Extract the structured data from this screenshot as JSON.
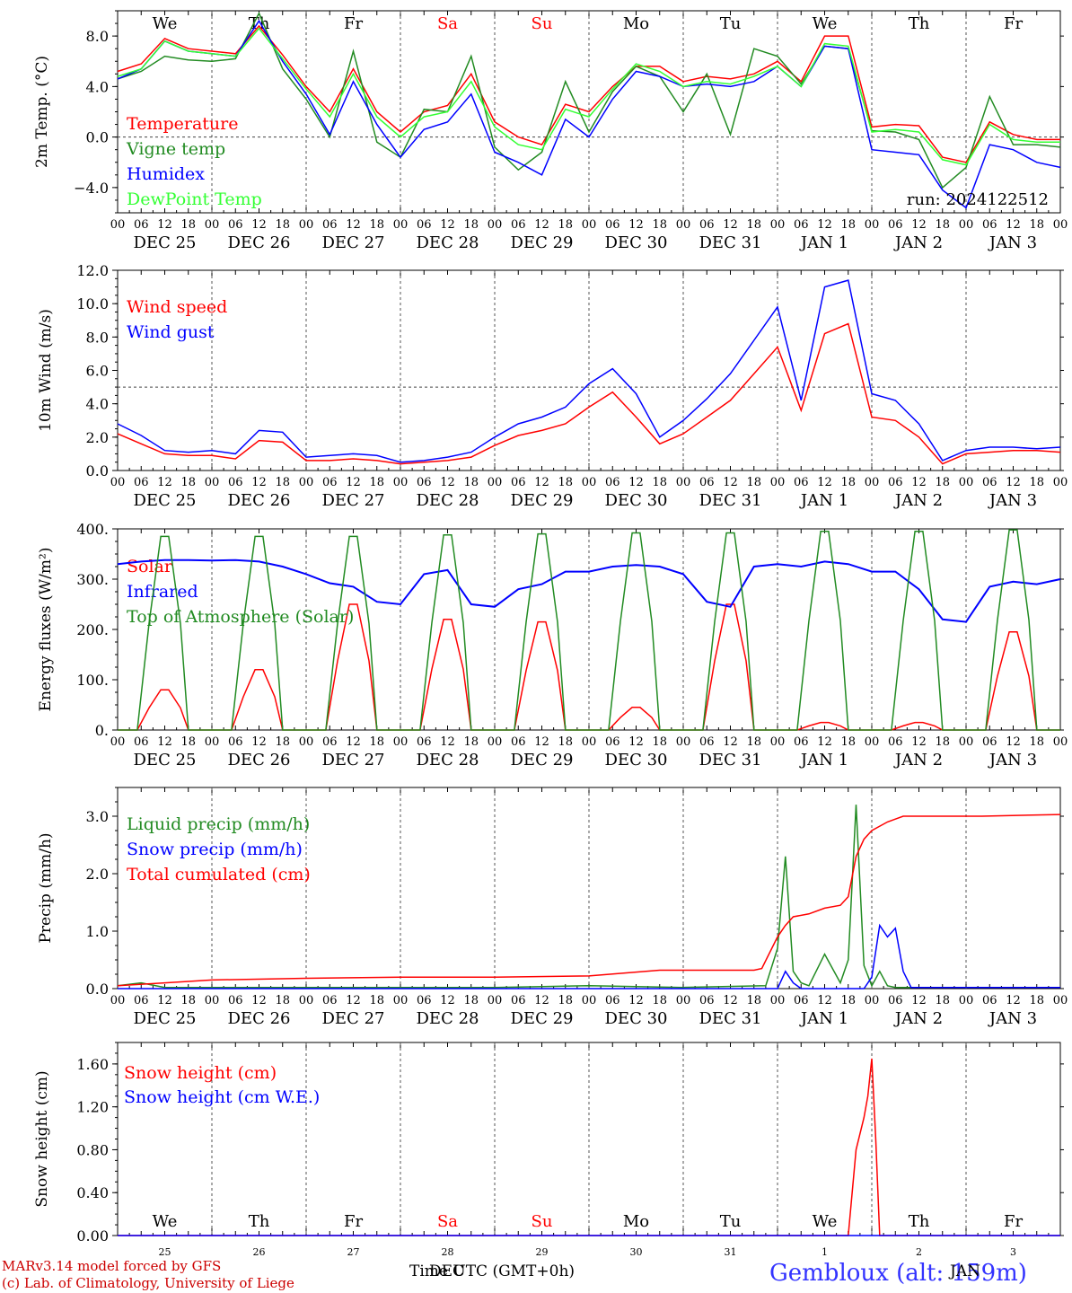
{
  "chart_data": [
    {
      "type": "line",
      "ylabel": "2m Temp. (°C)",
      "ylim": [
        -6,
        10
      ],
      "yticks": [
        -4.0,
        0.0,
        4.0,
        8.0
      ],
      "ytick_labels": [
        "−4.0",
        "0.0",
        "4.0",
        "8.0"
      ],
      "reference_line": 0.0,
      "days": [
        "We",
        "Th",
        "Fr",
        "Sa",
        "Su",
        "Mo",
        "Tu",
        "We",
        "Th",
        "Fr"
      ],
      "weekend_color": "#ff0000",
      "run_label": "run: 2024122512",
      "series": [
        {
          "name": "Temperature",
          "color": "#ff0000",
          "x": [
            0,
            6,
            12,
            18,
            24,
            30,
            36,
            42,
            48,
            54,
            60,
            66,
            72,
            78,
            84,
            90,
            96,
            102,
            108,
            114,
            120,
            126,
            132,
            138,
            144,
            150,
            156,
            162,
            168,
            174,
            180,
            186,
            192,
            198,
            204,
            210,
            216,
            222,
            228,
            234,
            240
          ],
          "y": [
            5.2,
            5.8,
            7.8,
            7.0,
            6.8,
            6.6,
            8.8,
            6.5,
            4.0,
            2.0,
            5.4,
            2.0,
            0.4,
            2.0,
            2.5,
            5.0,
            1.2,
            0.0,
            -0.6,
            2.6,
            2.0,
            4.0,
            5.6,
            5.6,
            4.4,
            4.8,
            4.6,
            5.0,
            6.0,
            4.4,
            8.0,
            8.0,
            0.8,
            1.0,
            0.9,
            -1.6,
            -2.0,
            1.2,
            0.2,
            -0.2,
            -0.2
          ]
        },
        {
          "name": "Vigne temp",
          "color": "#228b22",
          "x": [
            0,
            6,
            12,
            18,
            24,
            30,
            36,
            42,
            48,
            54,
            60,
            66,
            72,
            78,
            84,
            90,
            96,
            102,
            108,
            114,
            120,
            126,
            132,
            138,
            144,
            150,
            156,
            162,
            168,
            174,
            180,
            186,
            192,
            198,
            204,
            210,
            216,
            222,
            228,
            234,
            240
          ],
          "y": [
            4.6,
            5.2,
            6.4,
            6.1,
            6.0,
            6.2,
            9.8,
            5.4,
            3.0,
            0.0,
            6.8,
            -0.4,
            -1.6,
            2.2,
            2.0,
            6.4,
            -0.8,
            -2.6,
            -1.2,
            4.4,
            0.4,
            3.6,
            5.6,
            4.8,
            2.0,
            5.0,
            0.2,
            7.0,
            6.4,
            4.2,
            7.2,
            7.0,
            0.5,
            0.4,
            -0.2,
            -4.0,
            -2.4,
            3.2,
            -0.6,
            -0.6,
            -0.8
          ]
        },
        {
          "name": "Humidex",
          "color": "#0000ff",
          "x": [
            0,
            6,
            12,
            18,
            24,
            30,
            36,
            42,
            48,
            54,
            60,
            66,
            72,
            78,
            84,
            90,
            96,
            102,
            108,
            114,
            120,
            126,
            132,
            138,
            144,
            150,
            156,
            162,
            168,
            174,
            180,
            186,
            192,
            198,
            204,
            210,
            216,
            222,
            228,
            234,
            240
          ],
          "y": [
            4.6,
            5.4,
            7.6,
            6.8,
            6.6,
            6.4,
            9.2,
            6.0,
            3.4,
            0.2,
            4.4,
            1.0,
            -1.6,
            0.6,
            1.2,
            3.4,
            -1.2,
            -2.0,
            -3.0,
            1.4,
            0.0,
            3.0,
            5.2,
            4.8,
            4.0,
            4.2,
            4.0,
            4.4,
            5.6,
            4.0,
            7.2,
            7.0,
            -1.0,
            -1.2,
            -1.4,
            -4.2,
            -5.6,
            -0.6,
            -1.0,
            -2.0,
            -2.4
          ]
        },
        {
          "name": "DewPoint Temp",
          "color": "#33ff33",
          "x": [
            0,
            6,
            12,
            18,
            24,
            30,
            36,
            42,
            48,
            54,
            60,
            66,
            72,
            78,
            84,
            90,
            96,
            102,
            108,
            114,
            120,
            126,
            132,
            138,
            144,
            150,
            156,
            162,
            168,
            174,
            180,
            186,
            192,
            198,
            204,
            210,
            216,
            222,
            228,
            234,
            240
          ],
          "y": [
            4.8,
            5.4,
            7.6,
            6.8,
            6.6,
            6.4,
            8.6,
            6.2,
            3.8,
            1.6,
            5.0,
            1.6,
            0.0,
            1.6,
            2.0,
            4.4,
            0.8,
            -0.6,
            -1.0,
            2.2,
            1.6,
            3.8,
            5.8,
            5.2,
            4.0,
            4.4,
            4.2,
            4.8,
            5.6,
            4.0,
            7.4,
            7.2,
            0.4,
            0.6,
            0.4,
            -1.8,
            -2.2,
            1.0,
            -0.2,
            -0.4,
            -0.4
          ]
        }
      ]
    },
    {
      "type": "line",
      "ylabel": "10m Wind (m/s)",
      "ylim": [
        0,
        12
      ],
      "yticks": [
        0.0,
        2.0,
        4.0,
        6.0,
        8.0,
        10.0,
        12.0
      ],
      "ytick_labels": [
        "0.0",
        "2.0",
        "4.0",
        "6.0",
        "8.0",
        "10.0",
        "12.0"
      ],
      "reference_line": 5.0,
      "series": [
        {
          "name": "Wind speed",
          "color": "#ff0000",
          "x": [
            0,
            6,
            12,
            18,
            24,
            30,
            36,
            42,
            48,
            54,
            60,
            66,
            72,
            78,
            84,
            90,
            96,
            102,
            108,
            114,
            120,
            126,
            132,
            138,
            144,
            150,
            156,
            162,
            168,
            174,
            180,
            186,
            192,
            198,
            204,
            210,
            216,
            222,
            228,
            234,
            240
          ],
          "y": [
            2.2,
            1.6,
            1.0,
            0.9,
            0.9,
            0.7,
            1.8,
            1.7,
            0.6,
            0.6,
            0.7,
            0.6,
            0.4,
            0.5,
            0.6,
            0.8,
            1.5,
            2.1,
            2.4,
            2.8,
            3.8,
            4.7,
            3.2,
            1.6,
            2.2,
            3.2,
            4.2,
            5.8,
            7.4,
            3.6,
            8.2,
            8.8,
            3.2,
            3.0,
            2.0,
            0.4,
            1.0,
            1.1,
            1.2,
            1.2,
            1.1
          ]
        },
        {
          "name": "Wind gust",
          "color": "#0000ff",
          "x": [
            0,
            6,
            12,
            18,
            24,
            30,
            36,
            42,
            48,
            54,
            60,
            66,
            72,
            78,
            84,
            90,
            96,
            102,
            108,
            114,
            120,
            126,
            132,
            138,
            144,
            150,
            156,
            162,
            168,
            174,
            180,
            186,
            192,
            198,
            204,
            210,
            216,
            222,
            228,
            234,
            240
          ],
          "y": [
            2.8,
            2.1,
            1.2,
            1.1,
            1.2,
            1.0,
            2.4,
            2.3,
            0.8,
            0.9,
            1.0,
            0.9,
            0.5,
            0.6,
            0.8,
            1.1,
            2.0,
            2.8,
            3.2,
            3.8,
            5.2,
            6.1,
            4.6,
            2.0,
            3.0,
            4.3,
            5.8,
            7.8,
            9.8,
            4.2,
            11.0,
            11.4,
            4.6,
            4.2,
            2.8,
            0.6,
            1.2,
            1.4,
            1.4,
            1.3,
            1.4
          ]
        }
      ]
    },
    {
      "type": "line",
      "ylabel": "Energy fluxes (W/m²)",
      "ylim": [
        0,
        400
      ],
      "yticks": [
        0,
        100,
        200,
        300,
        400
      ],
      "ytick_labels": [
        "0.",
        "100.",
        "200.",
        "300.",
        "400."
      ],
      "series": [
        {
          "name": "Solar",
          "color": "#ff0000",
          "kind": "daily_peak",
          "peak_hour": 12,
          "peaks": [
            80,
            120,
            250,
            220,
            215,
            45,
            250,
            15,
            15,
            195
          ]
        },
        {
          "name": "Infrared",
          "color": "#0000ff",
          "x": [
            0,
            6,
            12,
            18,
            24,
            30,
            36,
            42,
            48,
            54,
            60,
            66,
            72,
            78,
            84,
            90,
            96,
            102,
            108,
            114,
            120,
            126,
            132,
            138,
            144,
            150,
            156,
            162,
            168,
            174,
            180,
            186,
            192,
            198,
            204,
            210,
            216,
            222,
            228,
            234,
            240
          ],
          "y": [
            330,
            335,
            338,
            338,
            337,
            338,
            335,
            325,
            310,
            292,
            285,
            255,
            250,
            310,
            318,
            250,
            245,
            280,
            290,
            315,
            315,
            325,
            328,
            325,
            310,
            255,
            245,
            325,
            330,
            325,
            335,
            330,
            315,
            315,
            280,
            220,
            215,
            285,
            295,
            290,
            300
          ]
        },
        {
          "name": "Top of Atmosphere (Solar)",
          "color": "#228b22",
          "kind": "daily_peak",
          "peak_hour": 12,
          "peaks": [
            385,
            385,
            385,
            388,
            390,
            392,
            392,
            395,
            395,
            398
          ]
        }
      ]
    },
    {
      "type": "line",
      "ylabel": "Precip (mm/h)",
      "ylim": [
        0,
        3.5
      ],
      "yticks": [
        0.0,
        1.0,
        2.0,
        3.0
      ],
      "ytick_labels": [
        "0.0",
        "1.0",
        "2.0",
        "3.0"
      ],
      "series": [
        {
          "name": "Liquid precip (mm/h)",
          "color": "#228b22",
          "x": [
            0,
            6,
            12,
            24,
            48,
            72,
            96,
            120,
            144,
            165,
            168,
            170,
            172,
            174,
            176,
            180,
            184,
            186,
            188,
            190,
            192,
            194,
            196,
            198,
            200,
            204,
            210,
            240
          ],
          "y": [
            0.05,
            0.1,
            0.02,
            0.02,
            0.02,
            0.02,
            0.02,
            0.05,
            0.02,
            0.05,
            0.7,
            2.3,
            0.3,
            0.1,
            0.05,
            0.6,
            0.1,
            0.5,
            3.2,
            0.4,
            0.05,
            0.3,
            0.05,
            0.02,
            0.02,
            0.02,
            0.02,
            0.02
          ]
        },
        {
          "name": "Snow precip (mm/h)",
          "color": "#0000ff",
          "x": [
            0,
            168,
            170,
            172,
            174,
            190,
            192,
            194,
            196,
            198,
            200,
            202,
            240
          ],
          "y": [
            0,
            0,
            0.3,
            0.1,
            0,
            0,
            0.2,
            1.1,
            0.9,
            1.05,
            0.3,
            0.02,
            0.02
          ]
        },
        {
          "name": "Total cumulated (cm)",
          "color": "#ff0000",
          "x": [
            0,
            12,
            24,
            48,
            72,
            96,
            120,
            138,
            162,
            164,
            168,
            170,
            172,
            176,
            180,
            184,
            186,
            188,
            190,
            192,
            196,
            198,
            200,
            204,
            220,
            240
          ],
          "y": [
            0.05,
            0.1,
            0.15,
            0.18,
            0.2,
            0.2,
            0.22,
            0.32,
            0.32,
            0.35,
            0.9,
            1.1,
            1.25,
            1.3,
            1.4,
            1.45,
            1.6,
            2.3,
            2.6,
            2.75,
            2.9,
            2.95,
            3.0,
            3.0,
            3.0,
            3.03
          ]
        }
      ]
    },
    {
      "type": "line",
      "ylabel": "Snow height (cm)",
      "ylim": [
        0,
        1.8
      ],
      "yticks": [
        0.0,
        0.4,
        0.8,
        1.2,
        1.6
      ],
      "ytick_labels": [
        "0.00",
        "0.40",
        "0.80",
        "1.20",
        "1.60"
      ],
      "days": [
        "We",
        "Th",
        "Fr",
        "Sa",
        "Su",
        "Mo",
        "Tu",
        "We",
        "Th",
        "Fr"
      ],
      "dates": [
        "25",
        "26",
        "27",
        "28",
        "29",
        "30",
        "31",
        "1",
        "2",
        "3"
      ],
      "series": [
        {
          "name": "Snow height (cm)",
          "color": "#ff0000",
          "x": [
            0,
            186,
            188,
            190,
            191,
            192,
            193,
            194,
            240
          ],
          "y": [
            0,
            0,
            0.8,
            1.1,
            1.3,
            1.65,
            0.9,
            0,
            0
          ]
        },
        {
          "name": "Snow height (cm W.E.)",
          "color": "#0000ff",
          "x": [
            0,
            240
          ],
          "y": [
            0,
            0
          ]
        }
      ]
    }
  ],
  "shared": {
    "x_hour_labels": [
      "00",
      "06",
      "12",
      "18"
    ],
    "x_day_labels": [
      "DEC 25",
      "DEC 26",
      "DEC 27",
      "DEC 28",
      "DEC 29",
      "DEC 30",
      "DEC 31",
      "JAN  1",
      "JAN  2",
      "JAN  3"
    ],
    "xlabel": "Time UTC (GMT+0h)",
    "overlap_label": "DEC",
    "overlap_label2": "JAN"
  },
  "footer": {
    "credit1": "MARv3.14 model forced by GFS",
    "credit2": "(c) Lab. of Climatology, University of Liege",
    "station": "Gembloux (alt: 159m)",
    "credit_color": "#cc0000",
    "station_color": "#3333ff"
  }
}
